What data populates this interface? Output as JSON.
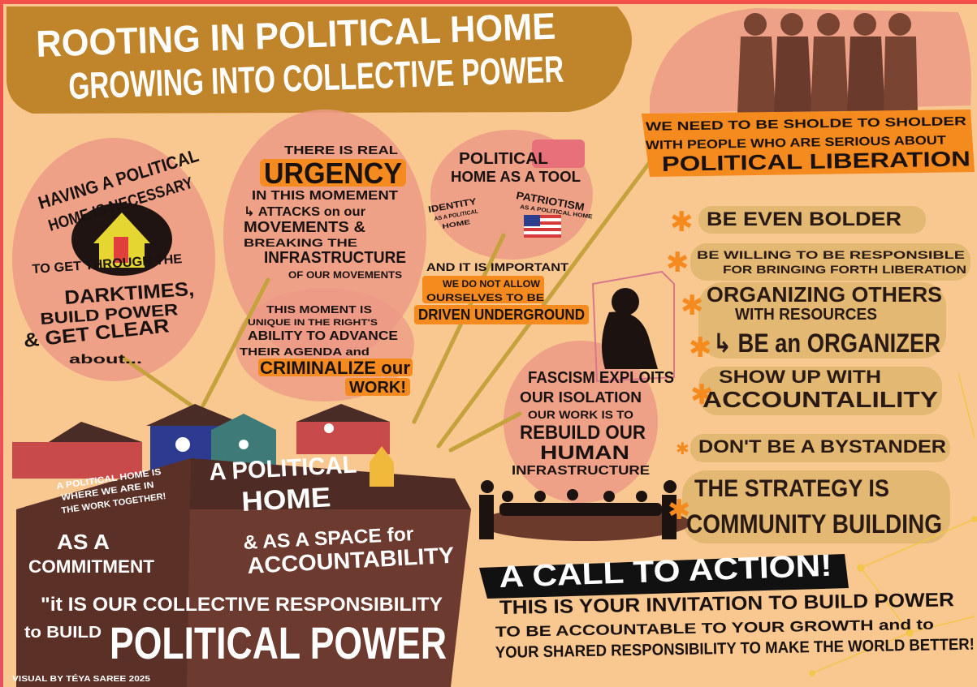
{
  "title": [
    "ROOTING IN POLITICAL HOME",
    "GROWING INTO COLLECTIVE POWER"
  ],
  "necessary": {
    "heading": [
      "HAVING A POLITICAL",
      "HOME IS NECESSARY"
    ],
    "body": [
      "TO GET THROUGH THE",
      "DARKTIMES,",
      "BUILD POWER",
      "& GET CLEAR",
      "about..."
    ]
  },
  "urgency": {
    "lines": [
      "THERE IS REAL",
      "URGENCY",
      "IN THIS MOMEMENT",
      "↳ ATTACKS on our",
      "MOVEMENTS &",
      "BREAKING THE",
      "INFRASTRUCTURE",
      "OF OUR MOVEMENTS"
    ],
    "moment": [
      "THIS MOMENT IS",
      "UNIQUE IN THE RIGHT'S",
      "ABILITY TO ADVANCE",
      "THEIR AGENDA and",
      "CRIMINALIZE our",
      "WORK!"
    ]
  },
  "tool": {
    "heading": [
      "POLITICAL",
      "HOME AS A TOOL"
    ],
    "identity": [
      "IDENTITY",
      "AS A POLITICAL",
      "HOME"
    ],
    "patriotism": [
      "PATRIOTISM",
      "AS A POLITICAL HOME"
    ]
  },
  "underground": [
    "AND IT IS IMPORTANT",
    "WE DO NOT ALLOW",
    "OURSELVES TO BE",
    "DRIVEN UNDERGROUND"
  ],
  "fascism": [
    "FASCISM EXPLOITS",
    "OUR ISOLATION",
    "OUR WORK IS TO",
    "REBUILD OUR",
    "HUMAN",
    "INFRASTRUCTURE"
  ],
  "shoulder": [
    "WE NEED TO BE SHOLDE TO SHOLDER",
    "WITH PEOPLE WHO ARE SERIOUS ABOUT",
    "POLITICAL LIBERATION"
  ],
  "actions": [
    [
      "BE EVEN BOLDER"
    ],
    [
      "BE WILLING TO BE RESPONSIBLE",
      "FOR BRINGING FORTH LIBERATION"
    ],
    [
      "ORGANIZING OTHERS",
      "WITH RESOURCES",
      "↳ BE an ORGANIZER"
    ],
    [
      "SHOW UP WITH",
      "ACCOUNTALILITY"
    ],
    [
      "DON'T BE A BYSTANDER"
    ],
    [
      "THE STRATEGY IS",
      "COMMUNITY BUILDING"
    ]
  ],
  "house": {
    "together": [
      "A POLITICAL HOME IS",
      "WHERE WE ARE IN",
      "THE WORK TOGETHER!"
    ],
    "title": [
      "A POLITICAL",
      "HOME"
    ],
    "commitment": [
      "AS A",
      "COMMITMENT"
    ],
    "accountability": [
      "& AS A SPACE for",
      "ACCOUNTABILITY"
    ],
    "quote": [
      "\"it IS OUR COLLECTIVE RESPONSIBILITY",
      "to BUILD"
    ],
    "power": "POLITICAL POWER"
  },
  "call_to_action": {
    "banner": "A CALL TO ACTION!",
    "lines": [
      "THIS IS YOUR INVITATION TO BUILD POWER",
      "TO BE ACCOUNTABLE TO YOUR GROWTH and to",
      "YOUR SHARED RESPONSIBILITY TO MAKE THE WORLD BETTER!"
    ]
  },
  "credit": "VISUAL BY TÉYA SAREE 2025"
}
